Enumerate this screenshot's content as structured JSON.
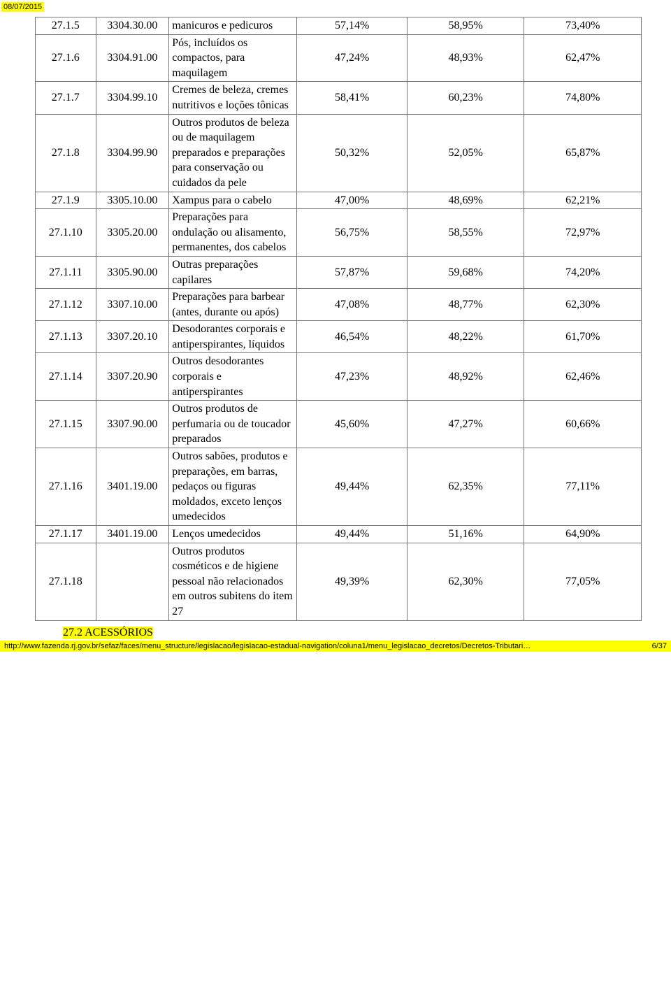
{
  "date_stamp": "08/07/2015",
  "rows": [
    {
      "c1": "27.1.5",
      "c2": "3304.30.00",
      "c3": "manicuros e pedicuros",
      "c4": "57,14%",
      "c5": "58,95%",
      "c6": "73,40%"
    },
    {
      "c1": "27.1.6",
      "c2": "3304.91.00",
      "c3": "Pós, incluídos os compactos, para maquilagem",
      "c4": "47,24%",
      "c5": "48,93%",
      "c6": "62,47%"
    },
    {
      "c1": "27.1.7",
      "c2": "3304.99.10",
      "c3": "Cremes de beleza, cremes nutritivos e loções tônicas",
      "c4": "58,41%",
      "c5": "60,23%",
      "c6": "74,80%"
    },
    {
      "c1": "27.1.8",
      "c2": "3304.99.90",
      "c3": "Outros produtos de beleza ou de maquilagem preparados e preparações para conservação ou cuidados da pele",
      "c4": "50,32%",
      "c5": "52,05%",
      "c6": "65,87%"
    },
    {
      "c1": "27.1.9",
      "c2": "3305.10.00",
      "c3": "Xampus para o cabelo",
      "c4": "47,00%",
      "c5": "48,69%",
      "c6": "62,21%"
    },
    {
      "c1": "27.1.10",
      "c2": "3305.20.00",
      "c3": "Preparações para ondulação ou alisamento, permanentes, dos cabelos",
      "c4": "56,75%",
      "c5": "58,55%",
      "c6": "72,97%"
    },
    {
      "c1": "27.1.11",
      "c2": "3305.90.00",
      "c3": "Outras preparações capilares",
      "c4": "57,87%",
      "c5": "59,68%",
      "c6": "74,20%"
    },
    {
      "c1": "27.1.12",
      "c2": "3307.10.00",
      "c3": "Preparações para barbear (antes, durante ou após)",
      "c4": "47,08%",
      "c5": "48,77%",
      "c6": "62,30%"
    },
    {
      "c1": "27.1.13",
      "c2": "3307.20.10",
      "c3": "Desodorantes corporais e antiperspirantes, líquidos",
      "c4": "46,54%",
      "c5": "48,22%",
      "c6": "61,70%"
    },
    {
      "c1": "27.1.14",
      "c2": "3307.20.90",
      "c3": "Outros desodorantes corporais e antiperspirantes",
      "c4": "47,23%",
      "c5": "48,92%",
      "c6": "62,46%"
    },
    {
      "c1": "27.1.15",
      "c2": "3307.90.00",
      "c3": "Outros produtos de perfumaria ou de toucador preparados",
      "c4": "45,60%",
      "c5": "47,27%",
      "c6": "60,66%"
    },
    {
      "c1": "27.1.16",
      "c2": "3401.19.00",
      "c3": "Outros sabões, produtos e preparações, em barras, pedaços ou figuras moldados, exceto lenços umedecidos",
      "c4": "49,44%",
      "c5": "62,35%",
      "c6": "77,11%"
    },
    {
      "c1": "27.1.17",
      "c2": "3401.19.00",
      "c3": "Lenços umedecidos",
      "c4": "49,44%",
      "c5": "51,16%",
      "c6": "64,90%"
    },
    {
      "c1": "27.1.18",
      "c2": "",
      "c3": "Outros produtos cosméticos e de higiene pessoal não relacionados em outros subitens do item 27",
      "c4": "49,39%",
      "c5": "62,30%",
      "c6": "77,05%"
    }
  ],
  "section_heading": "27.2 ACESSÓRIOS",
  "footer_url": "http://www.fazenda.rj.gov.br/sefaz/faces/menu_structure/legislacao/legislacao-estadual-navigation/coluna1/menu_legislacao_decretos/Decretos-Tributari…",
  "footer_page": "6/37"
}
